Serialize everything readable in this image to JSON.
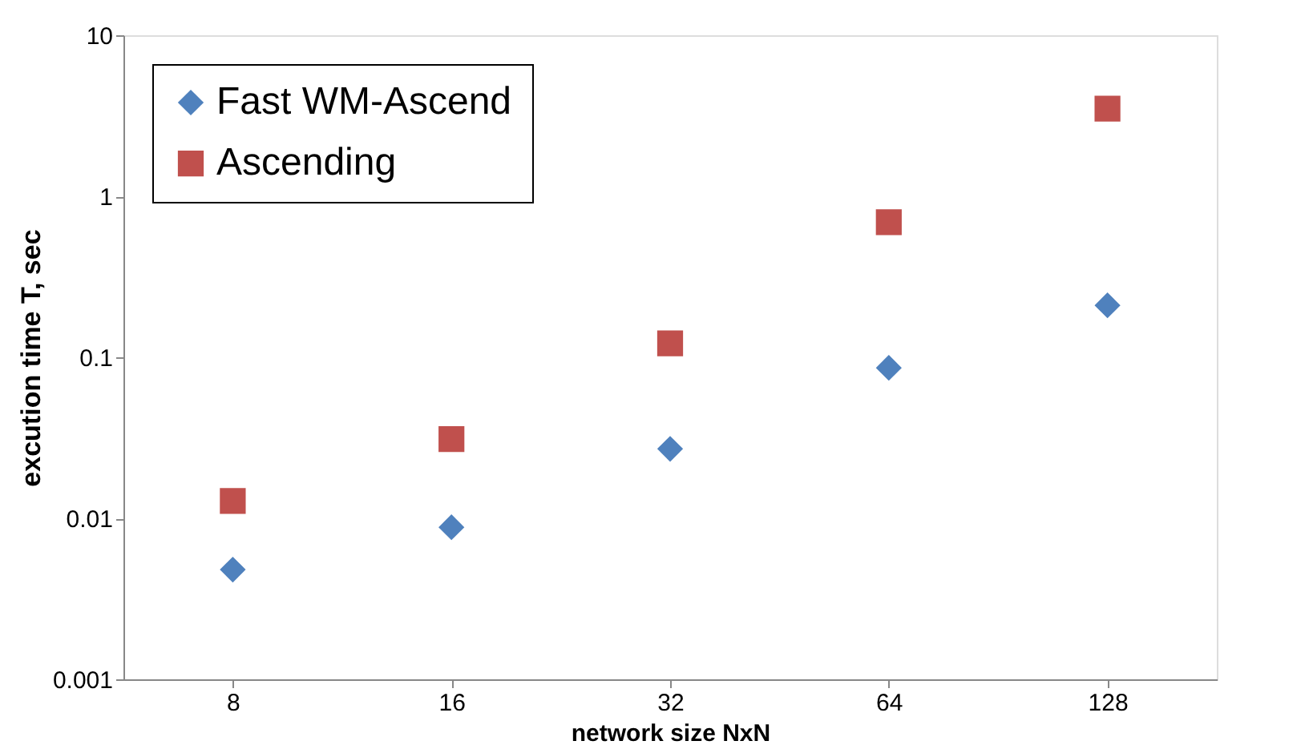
{
  "chart_data": {
    "type": "scatter",
    "xlabel": "network size NxN",
    "ylabel": "excution time T, sec",
    "categories": [
      "8",
      "16",
      "32",
      "64",
      "128"
    ],
    "series": [
      {
        "name": "Fast WM-Ascend",
        "color": "#4f81bd",
        "marker": "diamond",
        "values": [
          0.0048,
          0.0088,
          0.027,
          0.086,
          0.21
        ]
      },
      {
        "name": "Ascending",
        "color": "#c0504d",
        "marker": "square",
        "values": [
          0.0128,
          0.031,
          0.122,
          0.69,
          3.5
        ]
      }
    ],
    "log": true,
    "ylim": [
      0.001,
      10
    ],
    "yticks": [
      0.001,
      0.01,
      0.1,
      1,
      10
    ],
    "grid": false,
    "legend": "top left"
  }
}
